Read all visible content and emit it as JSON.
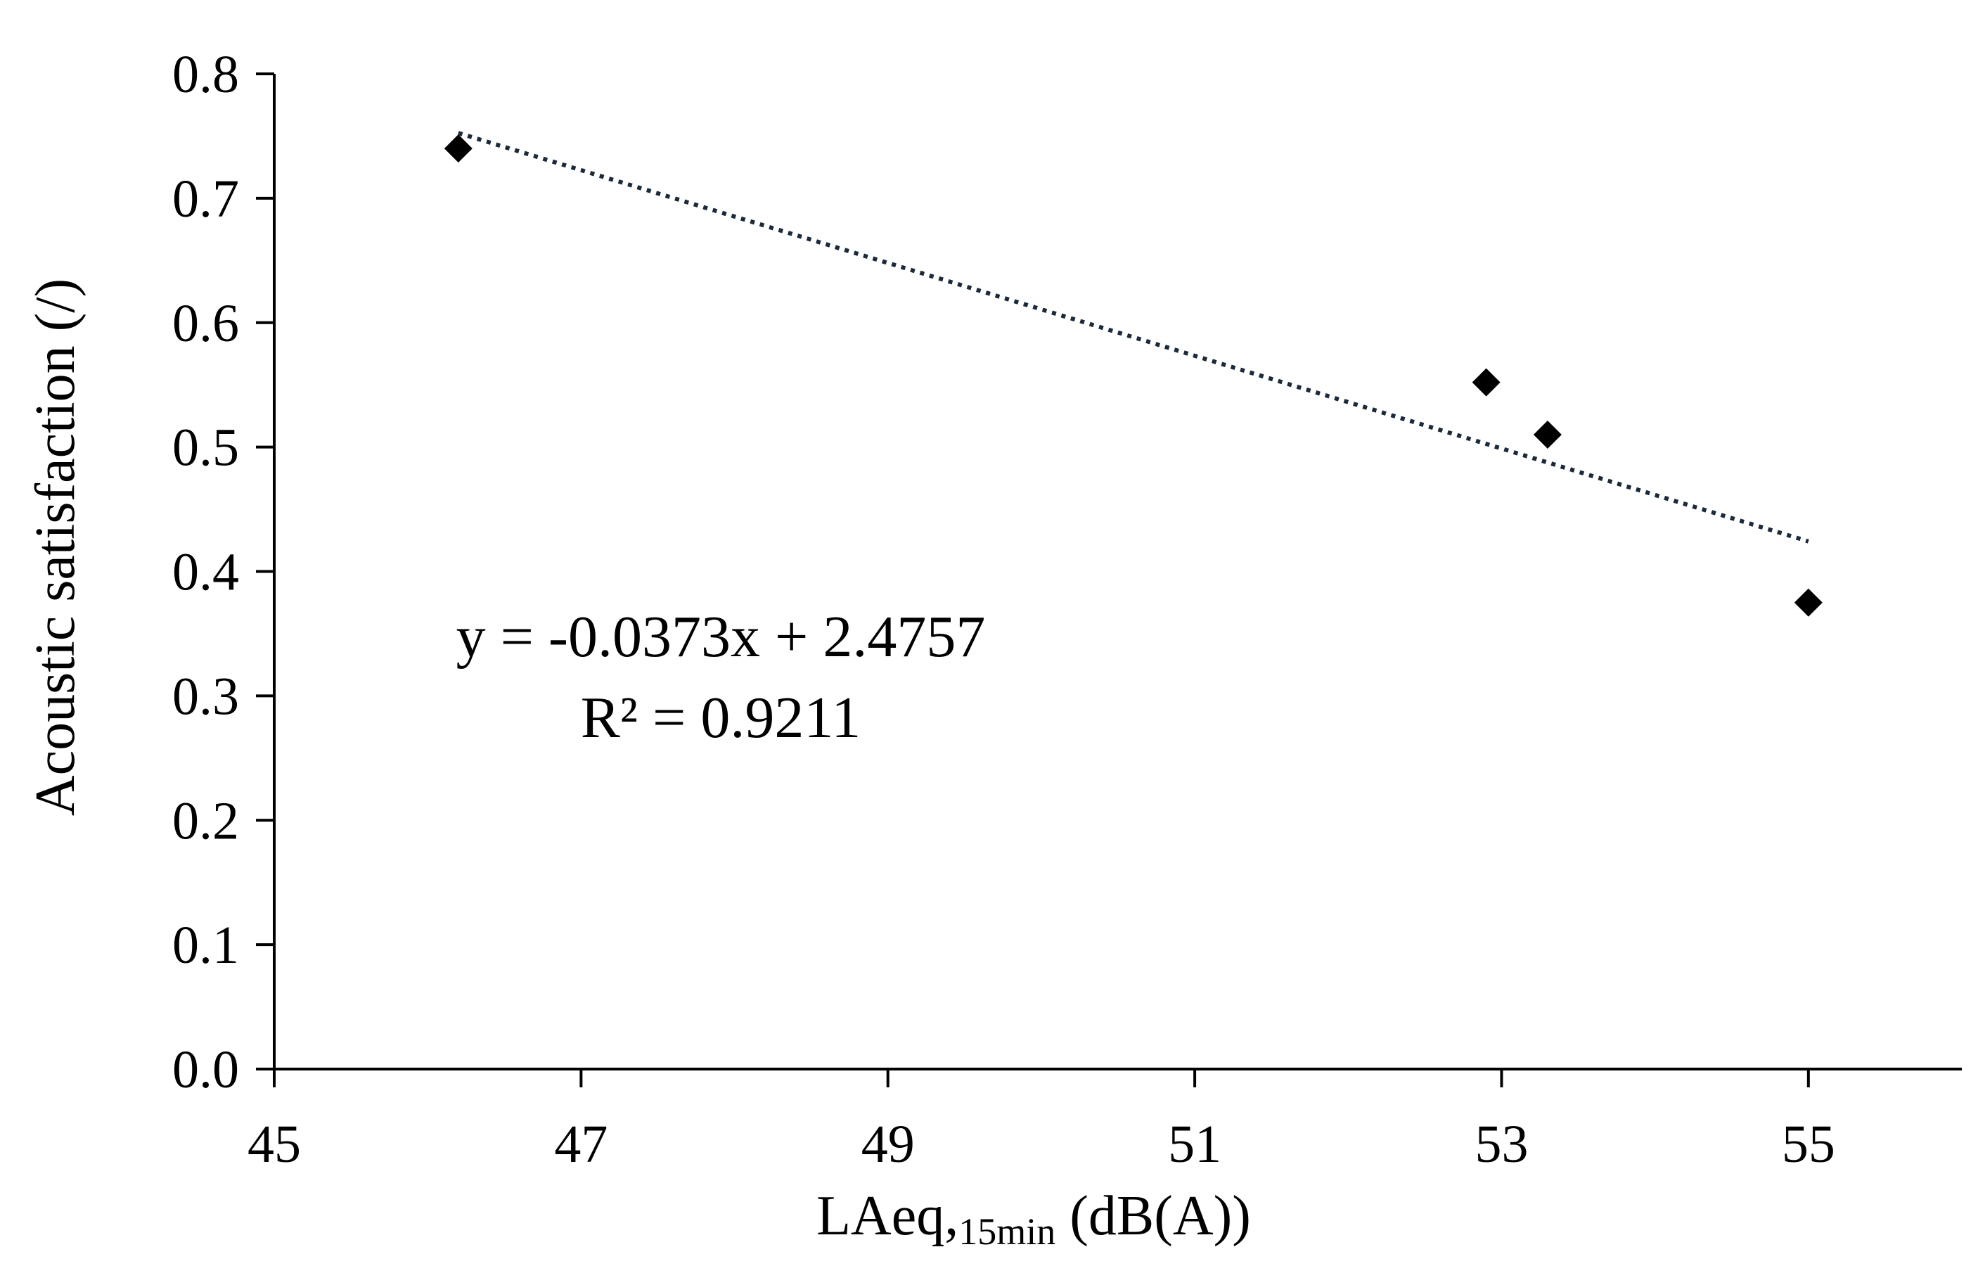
{
  "chart_data": {
    "type": "scatter",
    "xlabel": {
      "main": "LAeq,",
      "subscript": "15min",
      "rest": " (dB(A))"
    },
    "ylabel": "Acoustic satisfaction (/)",
    "xlim": [
      45,
      56
    ],
    "ylim": [
      0,
      0.8
    ],
    "x_ticks": [
      45,
      47,
      49,
      51,
      53,
      55
    ],
    "x_tick_labels": [
      "45",
      "47",
      "49",
      "51",
      "53",
      "55"
    ],
    "y_ticks": [
      0,
      0.1,
      0.2,
      0.3,
      0.4,
      0.5,
      0.6,
      0.7,
      0.8
    ],
    "y_tick_labels": [
      "0.0",
      "0.1",
      "0.2",
      "0.3",
      "0.4",
      "0.5",
      "0.6",
      "0.7",
      "0.8"
    ],
    "grid": false,
    "series": [
      {
        "marker": "diamond",
        "color": "#000000",
        "x": [
          46.2,
          52.9,
          53.3,
          55.0
        ],
        "y": [
          0.74,
          0.552,
          0.51,
          0.375
        ]
      }
    ],
    "trendline": {
      "style": "dotted",
      "slope": -0.0373,
      "intercept": 2.4757,
      "x_range": [
        46.2,
        55.0
      ]
    },
    "annotations": {
      "equation": "y = -0.0373x + 2.4757",
      "r_squared": "R² = 0.9211"
    }
  }
}
